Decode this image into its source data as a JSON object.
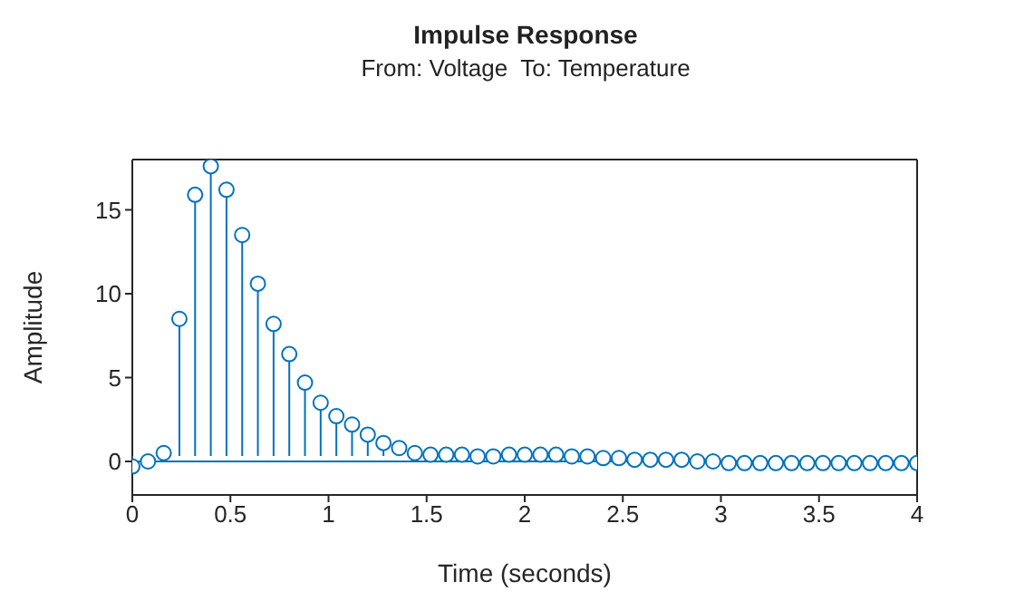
{
  "chart_data": {
    "type": "lollipop",
    "title": "Impulse Response",
    "subtitle": "From: Voltage  To: Temperature",
    "xlabel": "Time (seconds)",
    "ylabel": "Amplitude",
    "x": [
      0,
      0.08,
      0.16,
      0.24,
      0.32,
      0.4,
      0.48,
      0.56,
      0.64,
      0.72,
      0.8,
      0.88,
      0.96,
      1.04,
      1.12,
      1.2,
      1.28,
      1.36,
      1.44,
      1.52,
      1.6,
      1.68,
      1.76,
      1.84,
      1.92,
      2,
      2.08,
      2.16,
      2.24,
      2.32,
      2.4,
      2.48,
      2.56,
      2.64,
      2.72,
      2.8,
      2.88,
      2.96,
      3.04,
      3.12,
      3.2,
      3.28,
      3.36,
      3.44,
      3.52,
      3.6,
      3.68,
      3.76,
      3.84,
      3.92,
      4
    ],
    "series": [
      {
        "color": "#0072bd",
        "values": [
          -0.3,
          0,
          0.5,
          8.5,
          15.9,
          17.6,
          16.2,
          13.5,
          10.6,
          8.2,
          6.4,
          4.7,
          3.5,
          2.7,
          2.2,
          1.6,
          1.1,
          0.8,
          0.5,
          0.4,
          0.4,
          0.4,
          0.3,
          0.3,
          0.4,
          0.4,
          0.4,
          0.4,
          0.3,
          0.3,
          0.2,
          0.2,
          0.1,
          0.1,
          0.1,
          0.1,
          0,
          0,
          -0.1,
          -0.1,
          -0.1,
          -0.1,
          -0.1,
          -0.1,
          -0.1,
          -0.1,
          -0.1,
          -0.1,
          -0.1,
          -0.1,
          -0.1
        ]
      }
    ],
    "ref_lines": [
      {
        "axis": "y",
        "value": 0,
        "color": "#0072bd"
      }
    ],
    "marker": "circle",
    "xlim": [
      0,
      4
    ],
    "ylim": [
      -2,
      18
    ],
    "xticks": [
      0,
      0.5,
      1,
      1.5,
      2,
      2.5,
      3,
      3.5,
      4
    ],
    "yticks": [
      0,
      5,
      10,
      15
    ],
    "grid": false,
    "legend": false
  }
}
